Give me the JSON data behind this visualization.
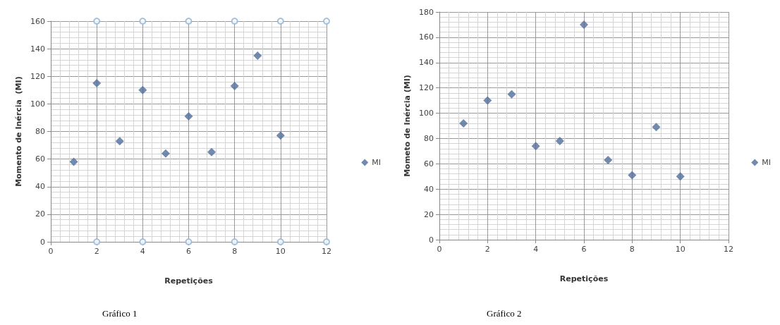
{
  "chart_data": [
    {
      "type": "scatter",
      "xlabel": "Repetições",
      "ylabel": "Momento de Inércia  (MI)",
      "annotations": [
        "Gráfico 1"
      ],
      "x": [
        1,
        2,
        3,
        4,
        5,
        6,
        7,
        8,
        9,
        10
      ],
      "xlim": [
        0,
        12
      ],
      "xticks": [
        0,
        2,
        4,
        6,
        8,
        10,
        12
      ],
      "ylim": [
        0,
        160
      ],
      "yticks": [
        0,
        20,
        40,
        60,
        80,
        100,
        120,
        140,
        160
      ],
      "grid": true,
      "legend": "right",
      "marker": "diamond",
      "series": [
        {
          "name": "MI",
          "color": "#4f6d99",
          "values": [
            58,
            115,
            73,
            110,
            64,
            91,
            65,
            113,
            135,
            77
          ]
        },
        {
          "color": "#8fb4d9",
          "marker": "circle",
          "x": [
            2,
            4,
            6,
            8,
            10,
            12,
            2,
            4,
            6,
            8,
            10,
            12
          ],
          "values": [
            160,
            160,
            160,
            160,
            160,
            160,
            0,
            0,
            0,
            0,
            0,
            0
          ]
        }
      ]
    },
    {
      "type": "scatter",
      "xlabel": "Repetições",
      "ylabel": "Mometo de Inércia (MI)",
      "annotations": [
        "Gráfico 2"
      ],
      "x": [
        1,
        2,
        3,
        4,
        5,
        6,
        7,
        8,
        9,
        10
      ],
      "xlim": [
        0,
        12
      ],
      "xticks": [
        0,
        2,
        4,
        6,
        8,
        10,
        12
      ],
      "ylim": [
        0,
        180
      ],
      "yticks": [
        0,
        20,
        40,
        60,
        80,
        100,
        120,
        140,
        160,
        180
      ],
      "grid": true,
      "legend": "right",
      "marker": "diamond",
      "series": [
        {
          "name": "MI",
          "color": "#4f6d99",
          "values": [
            92,
            110,
            115,
            74,
            78,
            170,
            63,
            51,
            89,
            50
          ]
        }
      ]
    }
  ]
}
